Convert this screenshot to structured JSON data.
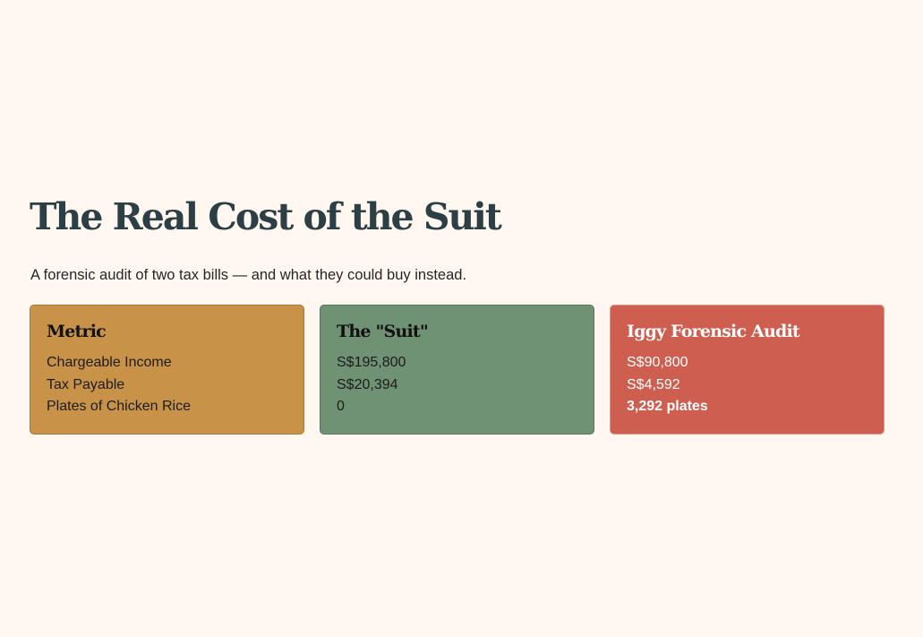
{
  "header": {
    "title": "The Real Cost of the Suit",
    "subtitle": "A forensic audit of two tax bills — and what they could buy instead."
  },
  "cards": [
    {
      "title": "Metric",
      "rows": [
        "Chargeable Income",
        "Tax Payable",
        "Plates of Chicken Rice"
      ]
    },
    {
      "title": "The \"Suit\"",
      "rows": [
        "S$195,800",
        "S$20,394",
        "0"
      ]
    },
    {
      "title": "Iggy Forensic Audit",
      "rows": [
        "S$90,800",
        "S$4,592",
        "3,292 plates"
      ]
    }
  ],
  "colors": {
    "background": "#fff7f0",
    "title": "#2b3f45",
    "metric_card": "#c89249",
    "suit_card": "#6f9174",
    "audit_card": "#cd5e50"
  }
}
